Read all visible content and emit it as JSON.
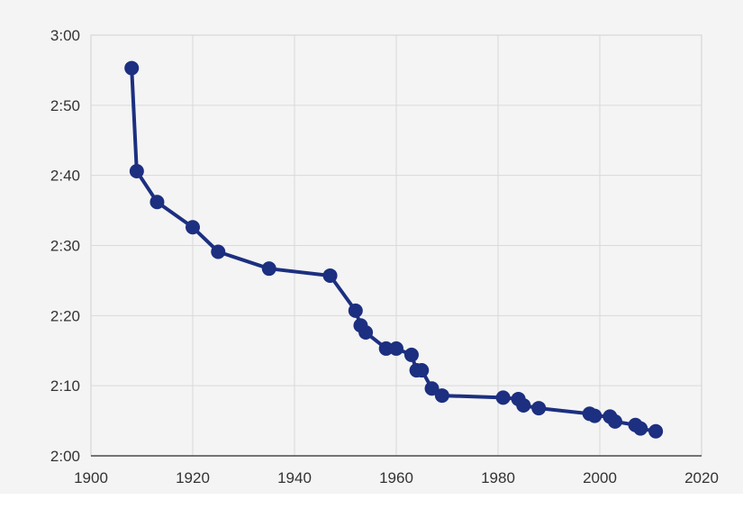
{
  "chart_data": {
    "type": "line",
    "title": "",
    "xlabel": "",
    "ylabel": "",
    "xlim": [
      1900,
      2020
    ],
    "ylim": [
      120,
      180
    ],
    "x_ticks": [
      1900,
      1920,
      1940,
      1960,
      1980,
      2000,
      2020
    ],
    "x_tick_labels": [
      "1900",
      "1920",
      "1940",
      "1960",
      "1980",
      "2000",
      "2020"
    ],
    "y_ticks": [
      120,
      130,
      140,
      150,
      160,
      170,
      180
    ],
    "y_tick_labels": [
      "2:00",
      "2:10",
      "2:20",
      "2:30",
      "2:40",
      "2:50",
      "3:00"
    ],
    "grid": true,
    "legend": "none",
    "color": "#1c2f80",
    "series": [
      {
        "points": [
          {
            "x": 1908,
            "y": 175.3
          },
          {
            "x": 1909,
            "y": 160.6
          },
          {
            "x": 1913,
            "y": 156.2
          },
          {
            "x": 1920,
            "y": 152.6
          },
          {
            "x": 1925,
            "y": 149.1
          },
          {
            "x": 1935,
            "y": 146.7
          },
          {
            "x": 1947,
            "y": 145.7
          },
          {
            "x": 1952,
            "y": 140.7
          },
          {
            "x": 1953,
            "y": 138.6
          },
          {
            "x": 1954,
            "y": 137.6
          },
          {
            "x": 1958,
            "y": 135.3
          },
          {
            "x": 1960,
            "y": 135.3
          },
          {
            "x": 1963,
            "y": 134.4
          },
          {
            "x": 1964,
            "y": 132.2
          },
          {
            "x": 1965,
            "y": 132.2
          },
          {
            "x": 1967,
            "y": 129.6
          },
          {
            "x": 1969,
            "y": 128.6
          },
          {
            "x": 1981,
            "y": 128.3
          },
          {
            "x": 1984,
            "y": 128.1
          },
          {
            "x": 1985,
            "y": 127.2
          },
          {
            "x": 1988,
            "y": 126.8
          },
          {
            "x": 1998,
            "y": 126.0
          },
          {
            "x": 1999,
            "y": 125.7
          },
          {
            "x": 2002,
            "y": 125.6
          },
          {
            "x": 2003,
            "y": 124.9
          },
          {
            "x": 2007,
            "y": 124.4
          },
          {
            "x": 2008,
            "y": 123.9
          },
          {
            "x": 2011,
            "y": 123.5
          }
        ]
      }
    ]
  }
}
